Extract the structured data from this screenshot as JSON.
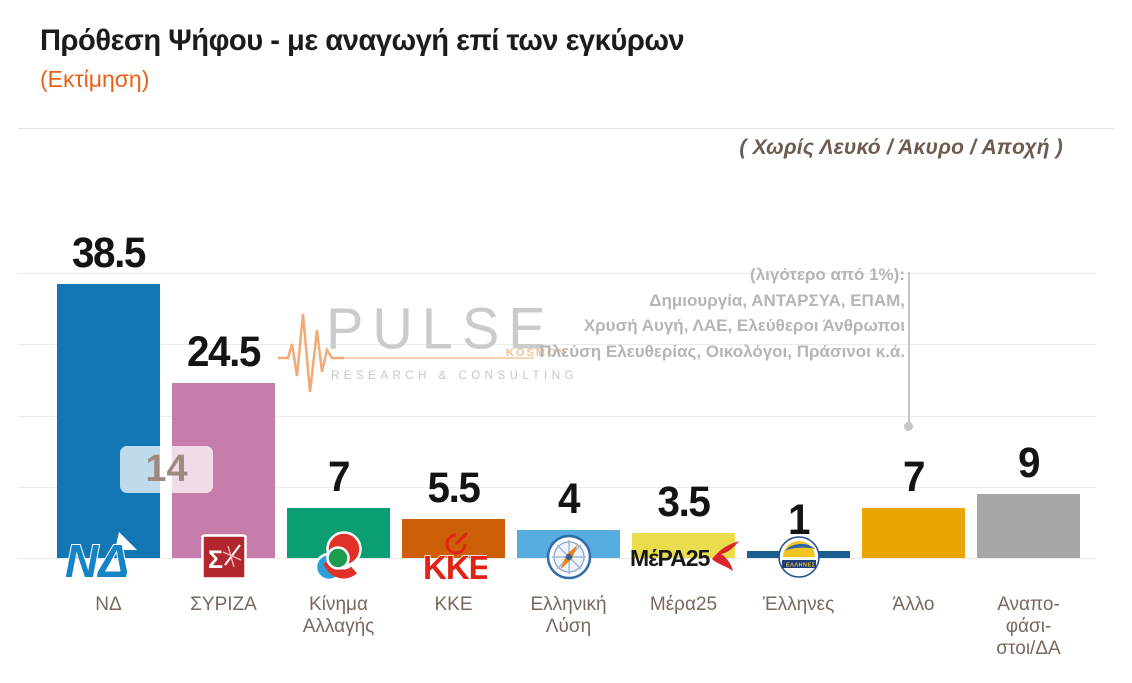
{
  "header": {
    "title": "Πρόθεση Ψήφου - με αναγωγή επί των εγκύρων",
    "subtitle": "(Εκτίμηση)",
    "note_right": "( Χωρίς Λευκό / Άκυρο / Αποχή )"
  },
  "watermark": {
    "brand": "PULSE",
    "tagline": "RESEARCH & CONSULTING",
    "tag": "KOSMON",
    "icon": "heartbeat-icon"
  },
  "annotation": {
    "lines": [
      "(λιγότερο από 1%):",
      "Δημιουργία, ΑΝΤΑΡΣΥΑ, ΕΠΑΜ,",
      "Χρυσή Αυγή, ΛΑΕ, Ελεύθεροι Άνθρωποι",
      "Πλεύση Ελευθερίας, Οικολόγοι, Πράσινοι κ.ά."
    ],
    "points_to": "Άλλο"
  },
  "lead_badge": {
    "value": "14"
  },
  "parties": [
    {
      "key": "nd",
      "display_value": "38.5",
      "color": "#1377b5",
      "logo": "nd-logo",
      "label_lines": [
        "ΝΔ"
      ]
    },
    {
      "key": "syriza",
      "display_value": "24.5",
      "color": "#c77dac",
      "logo": "syriza-logo",
      "label_lines": [
        "ΣΥΡΙΖΑ"
      ]
    },
    {
      "key": "kinima-allagis",
      "display_value": "7",
      "color": "#0b9e72",
      "logo": "kinal-logo",
      "label_lines": [
        "Κίνημα",
        "Αλλαγής"
      ]
    },
    {
      "key": "kke",
      "display_value": "5.5",
      "color": "#cc5f07",
      "logo": "kke-logo",
      "label_lines": [
        "ΚΚΕ"
      ]
    },
    {
      "key": "elliniki-lysi",
      "display_value": "4",
      "color": "#57ace0",
      "logo": "compass-logo",
      "label_lines": [
        "Ελληνική",
        "Λύση"
      ]
    },
    {
      "key": "mera25",
      "display_value": "3.5",
      "color": "#e9dd4e",
      "logo": "mera25-logo",
      "label_lines": [
        "Μέρα25"
      ]
    },
    {
      "key": "ellines",
      "display_value": "1",
      "color": "#1b5f91",
      "logo": "ellines-globe-logo",
      "label_lines": [
        "Έλληνες"
      ]
    },
    {
      "key": "allo",
      "display_value": "7",
      "color": "#e9a503",
      "logo": null,
      "label_lines": [
        "Άλλο"
      ]
    },
    {
      "key": "anapofasistoi",
      "display_value": "9",
      "color": "#a7a7a7",
      "logo": null,
      "label_lines": [
        "Αναπο-",
        "φάσι-",
        "στοι/ΔΑ"
      ]
    }
  ],
  "chart_data": {
    "type": "bar",
    "title": "Πρόθεση Ψήφου - με αναγωγή επί των εγκύρων (Εκτίμηση)",
    "subtitle": "( Χωρίς Λευκό / Άκυρο / Αποχή )",
    "categories": [
      "ΝΔ",
      "ΣΥΡΙΖΑ",
      "Κίνημα Αλλαγής",
      "ΚΚΕ",
      "Ελληνική Λύση",
      "Μέρα25",
      "Έλληνες",
      "Άλλο",
      "Αναποφάσιστοι/ΔΑ"
    ],
    "values": [
      38.5,
      24.5,
      7,
      5.5,
      4,
      3.5,
      1,
      7,
      9
    ],
    "bar_colors": [
      "#1377b5",
      "#c77dac",
      "#0b9e72",
      "#cc5f07",
      "#57ace0",
      "#e9dd4e",
      "#1b5f91",
      "#e9a503",
      "#a7a7a7"
    ],
    "data_labels": [
      "38.5",
      "24.5",
      "7",
      "5.5",
      "4",
      "3.5",
      "1",
      "7",
      "9"
    ],
    "xlabel": "",
    "ylabel": "",
    "ylim": [
      0,
      40
    ],
    "gridlines": [
      0,
      10,
      20,
      30,
      40
    ],
    "grid": true,
    "legend": false,
    "annotations": [
      {
        "text": "14",
        "meaning": "lead of ΝΔ over ΣΥΡΙΖΑ",
        "between": [
          "ΝΔ",
          "ΣΥΡΙΖΑ"
        ]
      },
      {
        "text": "(λιγότερο από 1%): Δημιουργία, ΑΝΤΑΡΣΥΑ, ΕΠΑΜ, Χρυσή Αυγή, ΛΑΕ, Ελεύθεροι Άνθρωποι, Πλεύση Ελευθερίας, Οικολόγοι, Πράσινοι κ.ά.",
        "points_to": "Άλλο"
      }
    ]
  }
}
